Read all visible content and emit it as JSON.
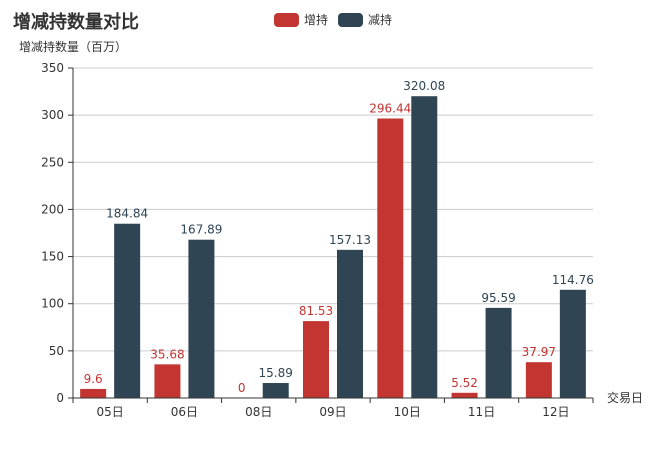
{
  "chart_data": {
    "type": "bar",
    "title": "增减持数量对比",
    "ylabel": "增减持数量（百万）",
    "xlabel": "交易日",
    "categories": [
      "05日",
      "06日",
      "08日",
      "09日",
      "10日",
      "11日",
      "12日"
    ],
    "ylim": [
      0,
      350
    ],
    "yticks": [
      0,
      50,
      100,
      150,
      200,
      250,
      300,
      350
    ],
    "grid": true,
    "legend_position": "top-center",
    "series": [
      {
        "name": "增持",
        "color": "#c23531",
        "values": [
          9.6,
          35.68,
          0,
          81.53,
          296.44,
          5.52,
          37.97
        ]
      },
      {
        "name": "减持",
        "color": "#2f4554",
        "values": [
          184.84,
          167.89,
          15.89,
          157.13,
          320.08,
          95.59,
          114.76
        ]
      }
    ]
  }
}
